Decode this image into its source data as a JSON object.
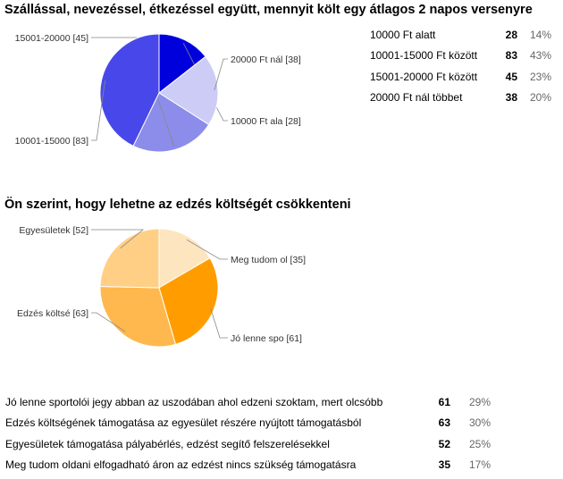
{
  "chart_data": [
    {
      "type": "pie",
      "title": "Szállással, nevezéssel, étkezéssel együtt, mennyit költ egy átlagos 2 napos versenyre",
      "slices": [
        {
          "label": "10000 Ft ala [28]",
          "value": 28,
          "color": "#0000dd"
        },
        {
          "label": "20000 Ft nál [38]",
          "value": 38,
          "color": "#ccccf7"
        },
        {
          "label": "15001-20000  [45]",
          "value": 45,
          "color": "#8c8cea"
        },
        {
          "label": "10001-15000  [83]",
          "value": 83,
          "color": "#4848ea"
        }
      ],
      "table": [
        {
          "label": "10000 Ft alatt",
          "count": "28",
          "percent": "14%"
        },
        {
          "label": "10001-15000 Ft között",
          "count": "83",
          "percent": "43%"
        },
        {
          "label": "15001-20000 Ft között",
          "count": "45",
          "percent": "23%"
        },
        {
          "label": "20000 Ft nál többet",
          "count": "38",
          "percent": "20%"
        }
      ]
    },
    {
      "type": "pie",
      "title": "Ön szerint, hogy lehetne az edzés költségét csökkenteni",
      "slices": [
        {
          "label": "Meg tudom ol [35]",
          "value": 35,
          "color": "#fde5bf"
        },
        {
          "label": "Jó lenne spo [61]",
          "value": 61,
          "color": "#ff9d00"
        },
        {
          "label": "Edzés költsé [63]",
          "value": 63,
          "color": "#ffb84d"
        },
        {
          "label": "Egyesületek  [52]",
          "value": 52,
          "color": "#ffcf85"
        }
      ],
      "table": [
        {
          "label": "Jó lenne sportolói jegy abban az uszodában ahol edzeni szoktam, mert olcsóbb",
          "count": "61",
          "percent": "29%"
        },
        {
          "label": "Edzés költségének támogatása az egyesület részére nyújtott támogatásból",
          "count": "63",
          "percent": "30%"
        },
        {
          "label": "Egyesületek támogatása pályabérlés, edzést segítő felszerelésekkel",
          "count": "52",
          "percent": "25%"
        },
        {
          "label": "Meg tudom oldani elfogadható áron az edzést nincs szükség támogatásra",
          "count": "35",
          "percent": "17%"
        }
      ]
    }
  ]
}
